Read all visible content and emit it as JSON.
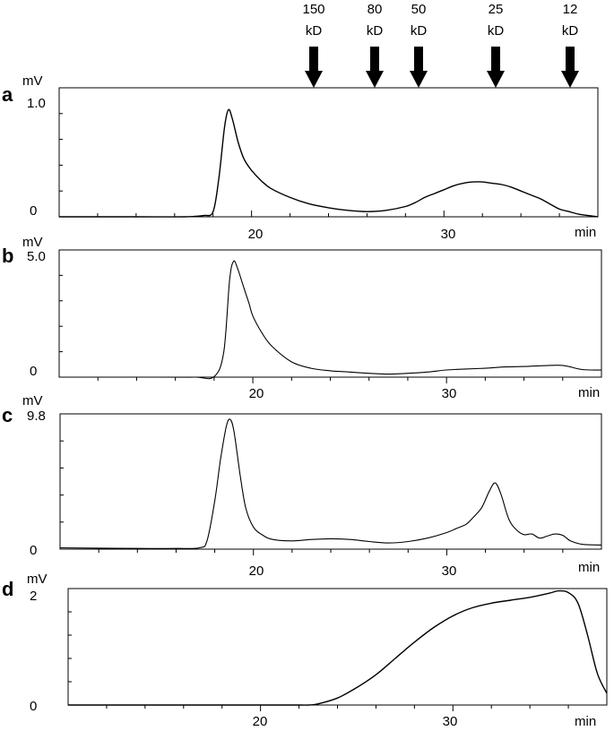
{
  "markers": [
    {
      "line1": "150",
      "line2": "kD",
      "x": 23.1
    },
    {
      "line1": "80",
      "line2": "kD",
      "x": 26.1
    },
    {
      "line1": "50",
      "line2": "kD",
      "x": 28.5
    },
    {
      "line1": "25",
      "line2": "kD",
      "x": 32.5
    },
    {
      "line1": "12",
      "line2": "kD",
      "x": 36.5
    }
  ],
  "chart_data": [
    {
      "panel": "a",
      "type": "line",
      "xlabel": "min",
      "ylabel": "mV",
      "xlim": [
        10,
        38
      ],
      "ylim": [
        0,
        1.0
      ],
      "x_ticks": [
        "20",
        "30"
      ],
      "y_ticks": [
        "0",
        "1.0"
      ],
      "series": [
        {
          "x": [
            10,
            14,
            16.5,
            17.5,
            18,
            18.3,
            18.6,
            18.8,
            19.0,
            19.3,
            19.6,
            20,
            20.5,
            21,
            22,
            23,
            24,
            25,
            26,
            27,
            28,
            28.5,
            29,
            29.5,
            30,
            30.5,
            31,
            31.5,
            32,
            32.5,
            33,
            33.5,
            34,
            34.5,
            35,
            35.5,
            36,
            36.5,
            37,
            37.5,
            38
          ],
          "y": [
            0,
            0,
            0,
            0.01,
            0.04,
            0.3,
            0.7,
            0.83,
            0.76,
            0.58,
            0.45,
            0.36,
            0.28,
            0.22,
            0.15,
            0.1,
            0.07,
            0.05,
            0.04,
            0.05,
            0.08,
            0.11,
            0.15,
            0.18,
            0.21,
            0.24,
            0.26,
            0.27,
            0.27,
            0.26,
            0.25,
            0.23,
            0.2,
            0.17,
            0.14,
            0.1,
            0.06,
            0.04,
            0.02,
            0.01,
            0.0
          ]
        }
      ]
    },
    {
      "panel": "b",
      "type": "line",
      "xlabel": "min",
      "ylabel": "mV",
      "xlim": [
        10,
        38
      ],
      "ylim": [
        0,
        5.0
      ],
      "x_ticks": [
        "20",
        "30"
      ],
      "y_ticks": [
        "0",
        "5.0"
      ],
      "series": [
        {
          "x": [
            10,
            15,
            17,
            18,
            18.5,
            18.8,
            19.0,
            19.2,
            19.5,
            19.8,
            20,
            20.5,
            21,
            22,
            23,
            24,
            25,
            26,
            27,
            28,
            29,
            30,
            31,
            32,
            33,
            34,
            35,
            36,
            37,
            38
          ],
          "y": [
            0,
            0,
            0,
            0.02,
            1.0,
            3.8,
            4.55,
            4.3,
            3.6,
            2.9,
            2.4,
            1.7,
            1.2,
            0.6,
            0.35,
            0.25,
            0.2,
            0.15,
            0.12,
            0.15,
            0.2,
            0.28,
            0.32,
            0.35,
            0.4,
            0.42,
            0.45,
            0.46,
            0.3,
            0.28
          ]
        }
      ]
    },
    {
      "panel": "c",
      "type": "line",
      "xlabel": "min",
      "ylabel": "mV",
      "xlim": [
        10,
        38
      ],
      "ylim": [
        0,
        9.8
      ],
      "x_ticks": [
        "20",
        "30"
      ],
      "y_ticks": [
        "0",
        "9.8"
      ],
      "series": [
        {
          "x": [
            10,
            14,
            16,
            17.2,
            17.6,
            18,
            18.3,
            18.6,
            18.8,
            19.0,
            19.3,
            19.6,
            20,
            20.5,
            21,
            22,
            23,
            24,
            25,
            26,
            27,
            28,
            29,
            30,
            30.5,
            31,
            31.3,
            31.8,
            32.2,
            32.5,
            32.8,
            33.2,
            33.6,
            34,
            34.4,
            34.8,
            35.2,
            35.6,
            36,
            36.4,
            37,
            38
          ],
          "y": [
            0.1,
            0.05,
            0.05,
            0.1,
            0.6,
            3.5,
            6.5,
            8.9,
            9.4,
            8.5,
            5.5,
            3.0,
            1.6,
            1.0,
            0.7,
            0.6,
            0.7,
            0.75,
            0.7,
            0.55,
            0.45,
            0.55,
            0.8,
            1.2,
            1.5,
            1.8,
            2.2,
            3.0,
            4.2,
            4.8,
            4.0,
            2.2,
            1.4,
            1.05,
            1.1,
            0.8,
            0.95,
            1.1,
            1.0,
            0.6,
            0.35,
            0.3
          ]
        }
      ]
    },
    {
      "panel": "d",
      "type": "line",
      "xlabel": "min",
      "ylabel": "mV",
      "xlim": [
        10,
        38
      ],
      "ylim": [
        0,
        2
      ],
      "x_ticks": [
        "20",
        "30"
      ],
      "y_ticks": [
        "0",
        "2"
      ],
      "series": [
        {
          "x": [
            10,
            20,
            22,
            22.5,
            23,
            24,
            25,
            26,
            27,
            28,
            29,
            30,
            31,
            32,
            33,
            34,
            35,
            35.5,
            36,
            36.5,
            37,
            37.5,
            38
          ],
          "y": [
            0,
            0,
            0,
            0,
            0.02,
            0.12,
            0.3,
            0.52,
            0.8,
            1.08,
            1.33,
            1.53,
            1.67,
            1.75,
            1.8,
            1.85,
            1.92,
            1.96,
            1.93,
            1.75,
            1.2,
            0.55,
            0.2
          ]
        }
      ]
    }
  ]
}
